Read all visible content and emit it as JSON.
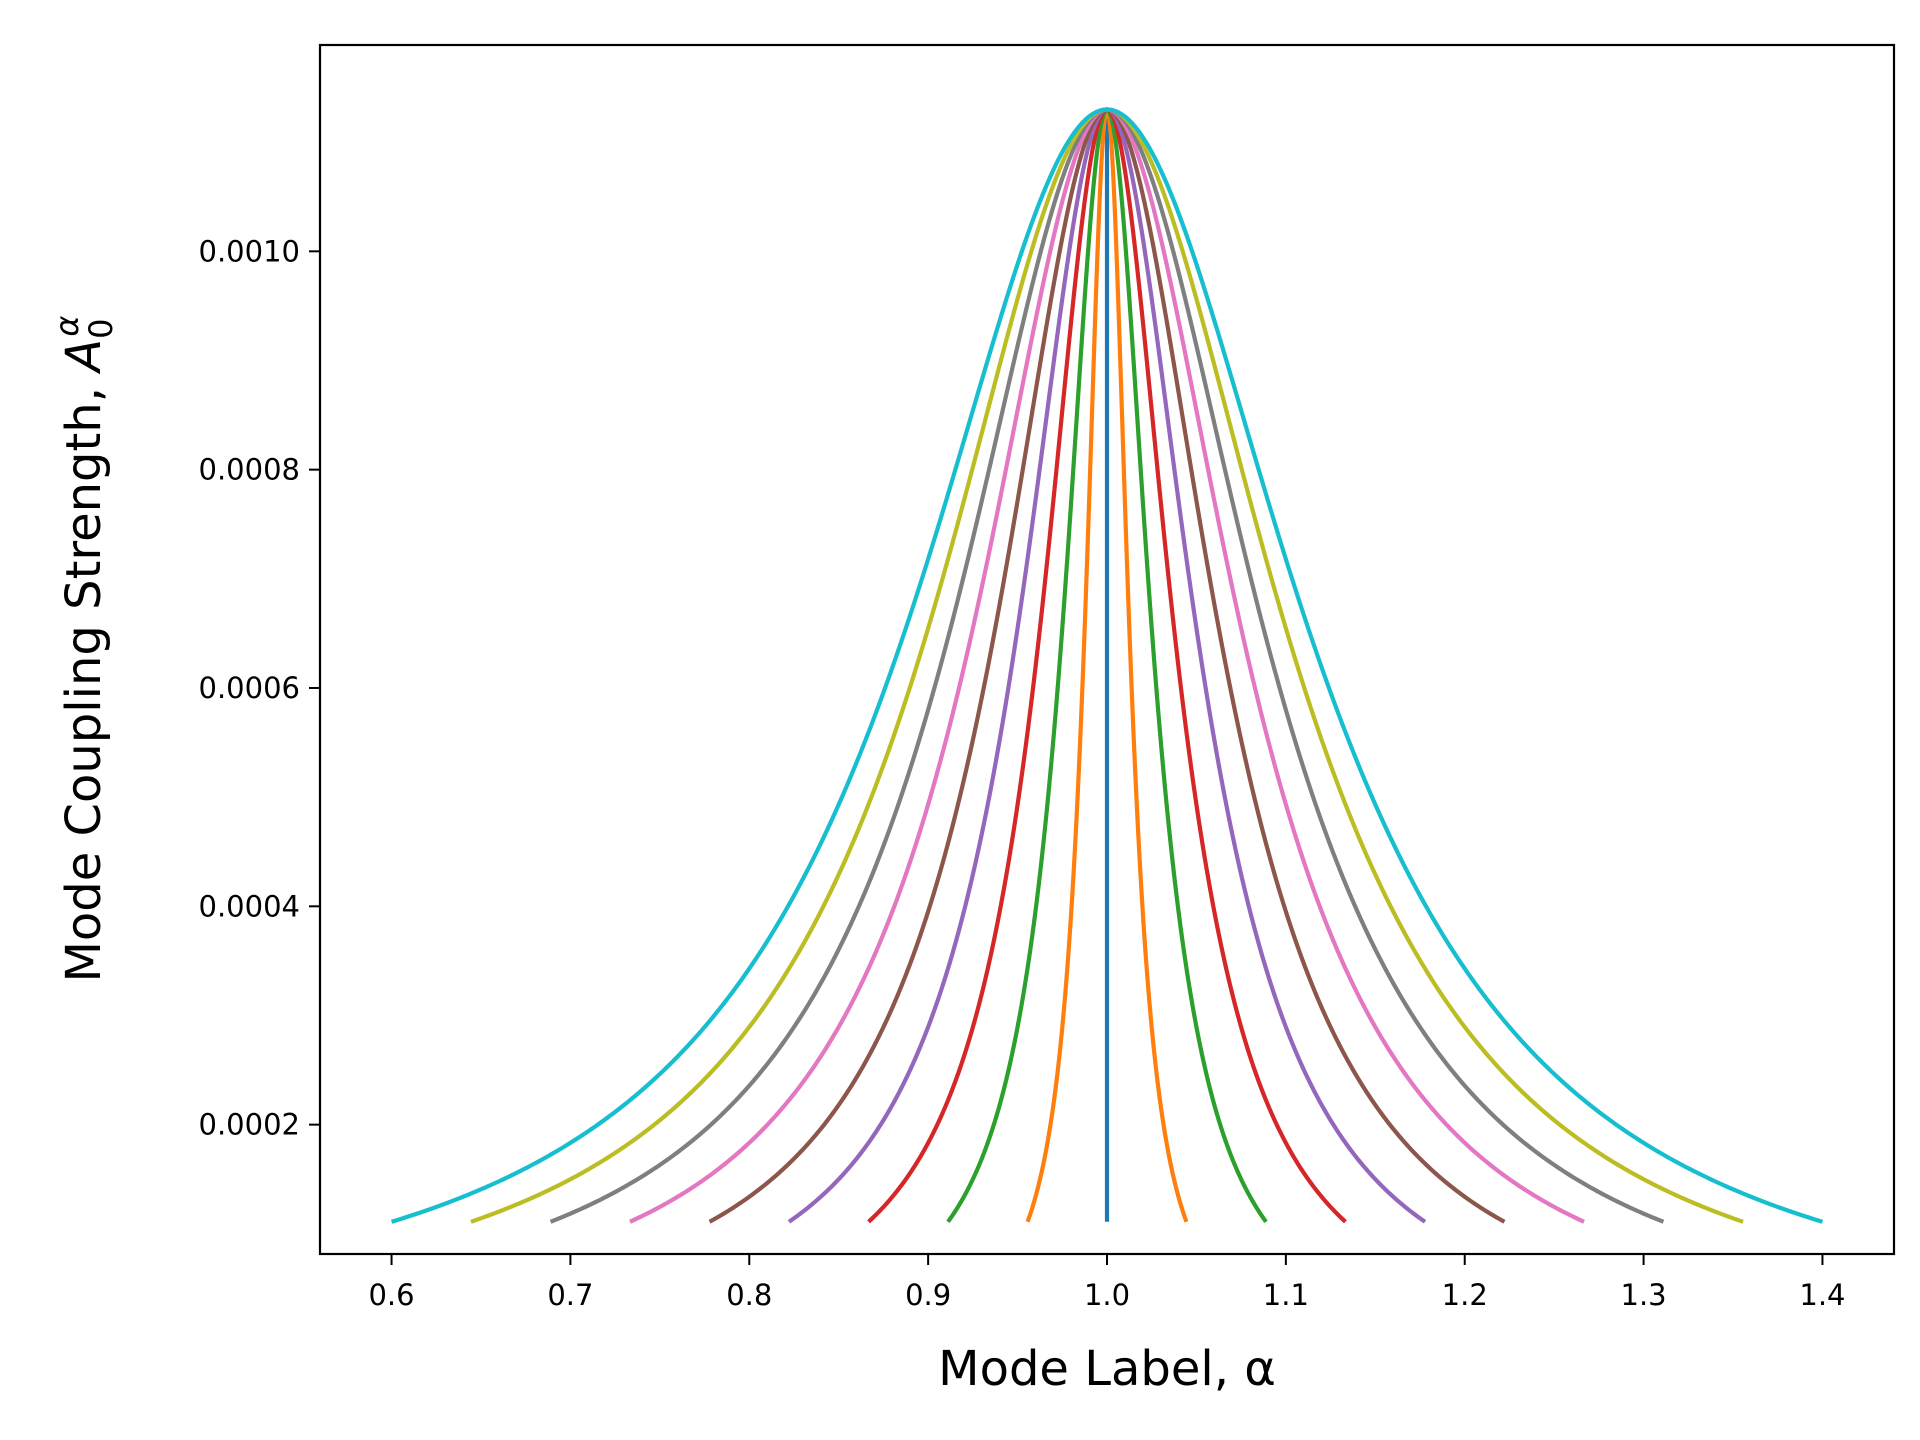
{
  "chart_data": {
    "type": "line",
    "title": "",
    "xlabel": "Mode Label, α",
    "ylabel_main": "Mode Coupling Strength, ",
    "ylabel_symbol": "A",
    "ylabel_subscript": "0",
    "ylabel_superscript": "α",
    "xlim": [
      0.56,
      1.44
    ],
    "ylim": [
      8.15e-05,
      0.001189
    ],
    "xticks": [
      0.6,
      0.7,
      0.8,
      0.9,
      1.0,
      1.1,
      1.2,
      1.3,
      1.4
    ],
    "xtick_labels": [
      "0.6",
      "0.7",
      "0.8",
      "0.9",
      "1.0",
      "1.1",
      "1.2",
      "1.3",
      "1.4"
    ],
    "yticks": [
      0.0002,
      0.0004,
      0.0006,
      0.0008,
      0.001
    ],
    "ytick_labels": [
      "0.0002",
      "0.0004",
      "0.0006",
      "0.0008",
      "0.0010"
    ],
    "grid": false,
    "legend": "none",
    "curve_model": "Lorentzian peaks centered at alpha = 1.0; each curve spans [1 - half_width, 1 + half_width] and falls from the peak to the base value at its endpoints",
    "peak_x": 1.0,
    "peak_y": 0.00113,
    "base_y": 0.000111,
    "series": [
      {
        "color": "#1f77b4",
        "half_width": 0.0
      },
      {
        "color": "#ff7f0e",
        "half_width": 0.0444
      },
      {
        "color": "#2ca02c",
        "half_width": 0.0889
      },
      {
        "color": "#d62728",
        "half_width": 0.1333
      },
      {
        "color": "#9467bd",
        "half_width": 0.1778
      },
      {
        "color": "#8c564b",
        "half_width": 0.2222
      },
      {
        "color": "#e377c2",
        "half_width": 0.2667
      },
      {
        "color": "#7f7f7f",
        "half_width": 0.3111
      },
      {
        "color": "#bcbd22",
        "half_width": 0.3556
      },
      {
        "color": "#17becf",
        "half_width": 0.4
      }
    ]
  }
}
